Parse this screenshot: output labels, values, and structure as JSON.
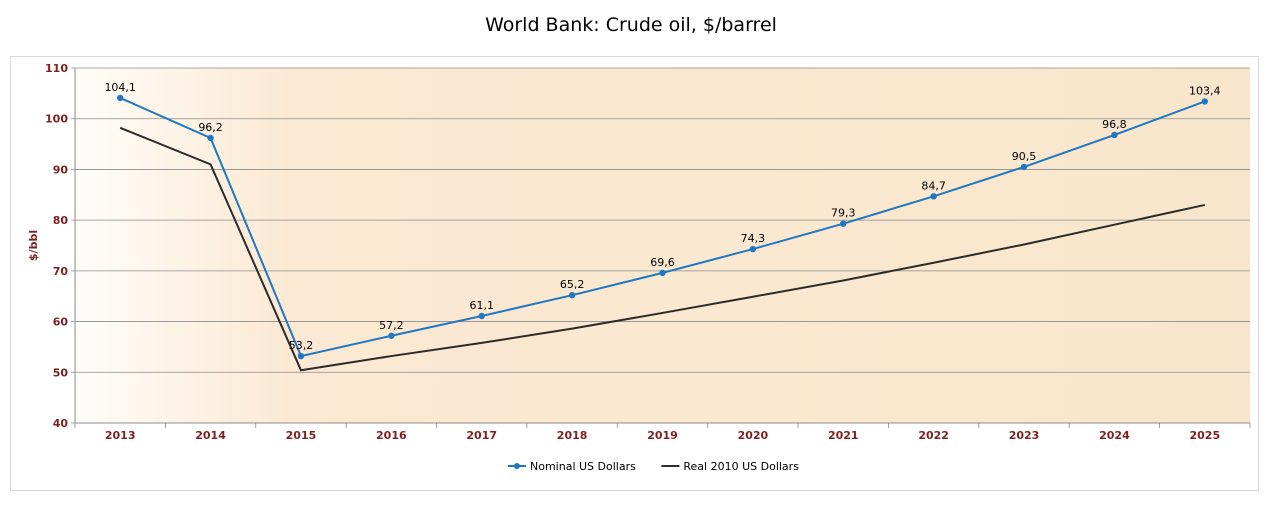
{
  "chart_data": {
    "type": "line",
    "title": "World Bank: Crude oil, $/barrel",
    "ylabel": "$/bbl",
    "xlabel": "",
    "ylim": [
      40,
      110
    ],
    "yticks": [
      40,
      50,
      60,
      70,
      80,
      90,
      100,
      110
    ],
    "grid": true,
    "legend_position": "bottom",
    "categories": [
      "2013",
      "2014",
      "2015",
      "2016",
      "2017",
      "2018",
      "2019",
      "2020",
      "2021",
      "2022",
      "2023",
      "2024",
      "2025"
    ],
    "series": [
      {
        "name": "Nominal US Dollars",
        "color": "#1f78c1",
        "markers": true,
        "values": [
          104.1,
          96.2,
          53.2,
          57.2,
          61.1,
          65.2,
          69.6,
          74.3,
          79.3,
          84.7,
          90.5,
          96.8,
          103.4
        ],
        "labels": [
          "104,1",
          "96,2",
          "53,2",
          "57,2",
          "61,1",
          "65,2",
          "69,6",
          "74,3",
          "79,3",
          "84,7",
          "90,5",
          "96,8",
          "103,4"
        ]
      },
      {
        "name": "Real 2010 US Dollars",
        "color": "#2b2b2b",
        "markers": false,
        "values": [
          98.2,
          91.0,
          50.4,
          53.2,
          55.8,
          58.6,
          61.7,
          64.9,
          68.1,
          71.6,
          75.2,
          79.1,
          83.0
        ]
      }
    ]
  }
}
